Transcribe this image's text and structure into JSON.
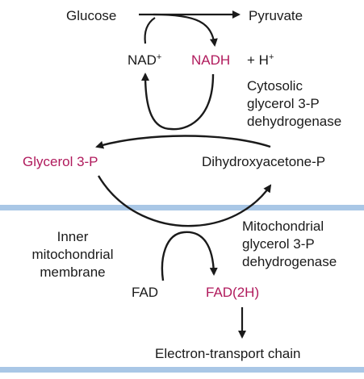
{
  "colors": {
    "text": "#1a1a1a",
    "accent": "#b01a5c",
    "membrane": "#a9c7e6",
    "arrow": "#1a1a1a"
  },
  "labels": {
    "glucose": "Glucose",
    "pyruvate": "Pyruvate",
    "nad_base": "NAD",
    "nad_charge": "+",
    "nadh": "NADH",
    "plus_h": "+ H",
    "h_charge": "+",
    "cytosolic_enzyme": [
      "Cytosolic",
      "glycerol 3-P",
      "dehydrogenase"
    ],
    "glycerol_3p": "Glycerol 3-P",
    "dhap": "Dihydroxyacetone-P",
    "inner_membrane": [
      "Inner",
      "mitochondrial",
      "membrane"
    ],
    "mito_enzyme": [
      "Mitochondrial",
      "glycerol 3-P",
      "dehydrogenase"
    ],
    "fad": "FAD",
    "fad2h": "FAD(2H)",
    "etc": "Electron-transport chain"
  }
}
